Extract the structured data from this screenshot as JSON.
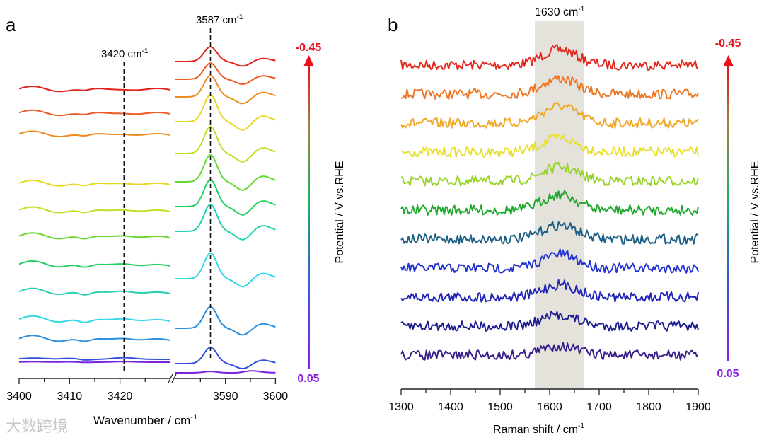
{
  "chart_data": [
    {
      "type": "line",
      "panel_label": "a",
      "title": "",
      "xlabel": "Wavenumber / cm",
      "xlabel_sup": "-1",
      "x_segments": [
        [
          3400,
          3430
        ],
        [
          3580,
          3600
        ]
      ],
      "xticks": [
        3400,
        3410,
        3420,
        3590,
        3600
      ],
      "annotations": [
        {
          "text": "3420 cm",
          "sup": "-1",
          "x": 3420.8
        },
        {
          "text": "3587 cm",
          "sup": "-1",
          "x": 3587
        }
      ],
      "series_count": 12,
      "peak_3420_rel": [
        0.5,
        0.55,
        0.6,
        0.7,
        0.75,
        0.8,
        0.85,
        0.9,
        0.9,
        0.8,
        0.3,
        0.1
      ],
      "peak_3587_rel": [
        0.55,
        0.6,
        0.8,
        1.0,
        1.0,
        1.0,
        1.0,
        1.0,
        0.95,
        0.8,
        0.6,
        0.05
      ]
    },
    {
      "type": "line",
      "panel_label": "b",
      "xlabel": "Raman shift / cm",
      "xlabel_sup": "-1",
      "xlim": [
        1300,
        1900
      ],
      "xticks": [
        1300,
        1400,
        1500,
        1600,
        1700,
        1800,
        1900
      ],
      "highlight_range": [
        1570,
        1670
      ],
      "annotation": {
        "text": "1630 cm",
        "sup": "-1"
      },
      "series_count": 11,
      "peak_rel": [
        1.0,
        1.0,
        1.1,
        0.9,
        0.9,
        1.0,
        0.9,
        0.9,
        0.8,
        0.7,
        0.6
      ]
    }
  ],
  "colorbar": {
    "label": "Potential / V vs.RHE",
    "top_label": "-0.45",
    "bottom_label": "0.05",
    "top_color": "#e8101a",
    "bottom_color": "#8a1ee8"
  },
  "colors_a": [
    "#e2201c",
    "#ee5a22",
    "#ef8a20",
    "#e8d820",
    "#bde020",
    "#66d830",
    "#22d060",
    "#25d0b0",
    "#30d8e8",
    "#2a90e0",
    "#3050d8",
    "#7a22e0"
  ],
  "colors_b": [
    "#e3281c",
    "#ee7828",
    "#f0a828",
    "#e8e030",
    "#98d428",
    "#20a830",
    "#1e5f86",
    "#2232d0",
    "#2226b8",
    "#1e1e90",
    "#3a1e8c"
  ],
  "watermark": "大数跨境"
}
